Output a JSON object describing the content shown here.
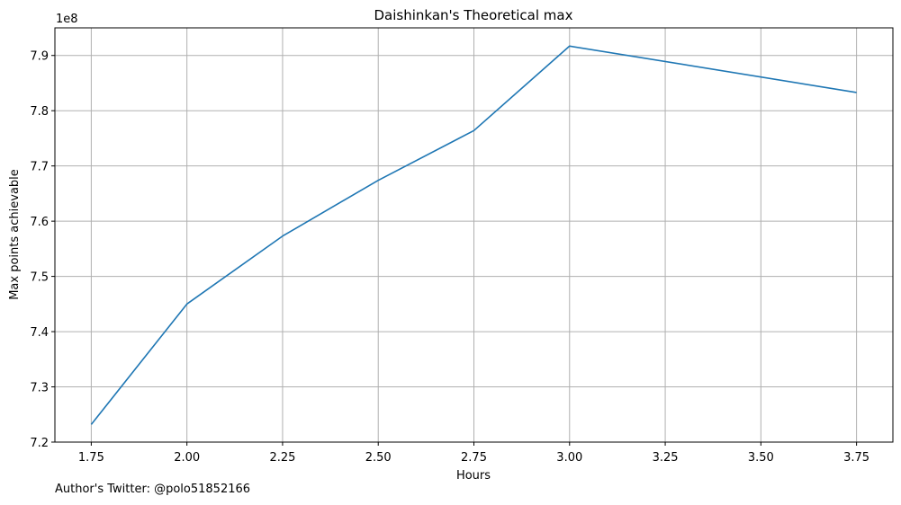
{
  "chart_data": {
    "type": "line",
    "title": "Daishinkan's Theoretical max",
    "xlabel": "Hours",
    "ylabel": "Max points achievable",
    "y_offset_label": "1e8",
    "y_scale": 100000000,
    "xlim": [
      1.655,
      3.845
    ],
    "ylim": [
      7.2,
      7.95
    ],
    "x_ticks": [
      1.75,
      2.0,
      2.25,
      2.5,
      2.75,
      3.0,
      3.25,
      3.5,
      3.75
    ],
    "x_tick_labels": [
      "1.75",
      "2.00",
      "2.25",
      "2.50",
      "2.75",
      "3.00",
      "3.25",
      "3.50",
      "3.75"
    ],
    "y_ticks": [
      7.2,
      7.3,
      7.4,
      7.5,
      7.6,
      7.7,
      7.8,
      7.9
    ],
    "y_tick_labels": [
      "7.2",
      "7.3",
      "7.4",
      "7.5",
      "7.6",
      "7.7",
      "7.8",
      "7.9"
    ],
    "grid": true,
    "line_color": "#1f77b4",
    "grid_color": "#b0b0b0",
    "series": [
      {
        "x": [
          1.75,
          2.0,
          2.25,
          2.5,
          2.75,
          3.0,
          3.75
        ],
        "y": [
          723200000,
          745000000,
          757300000,
          767400000,
          776400000,
          791700000,
          783300000
        ]
      }
    ]
  },
  "footnote": "Author's Twitter: @polo51852166"
}
